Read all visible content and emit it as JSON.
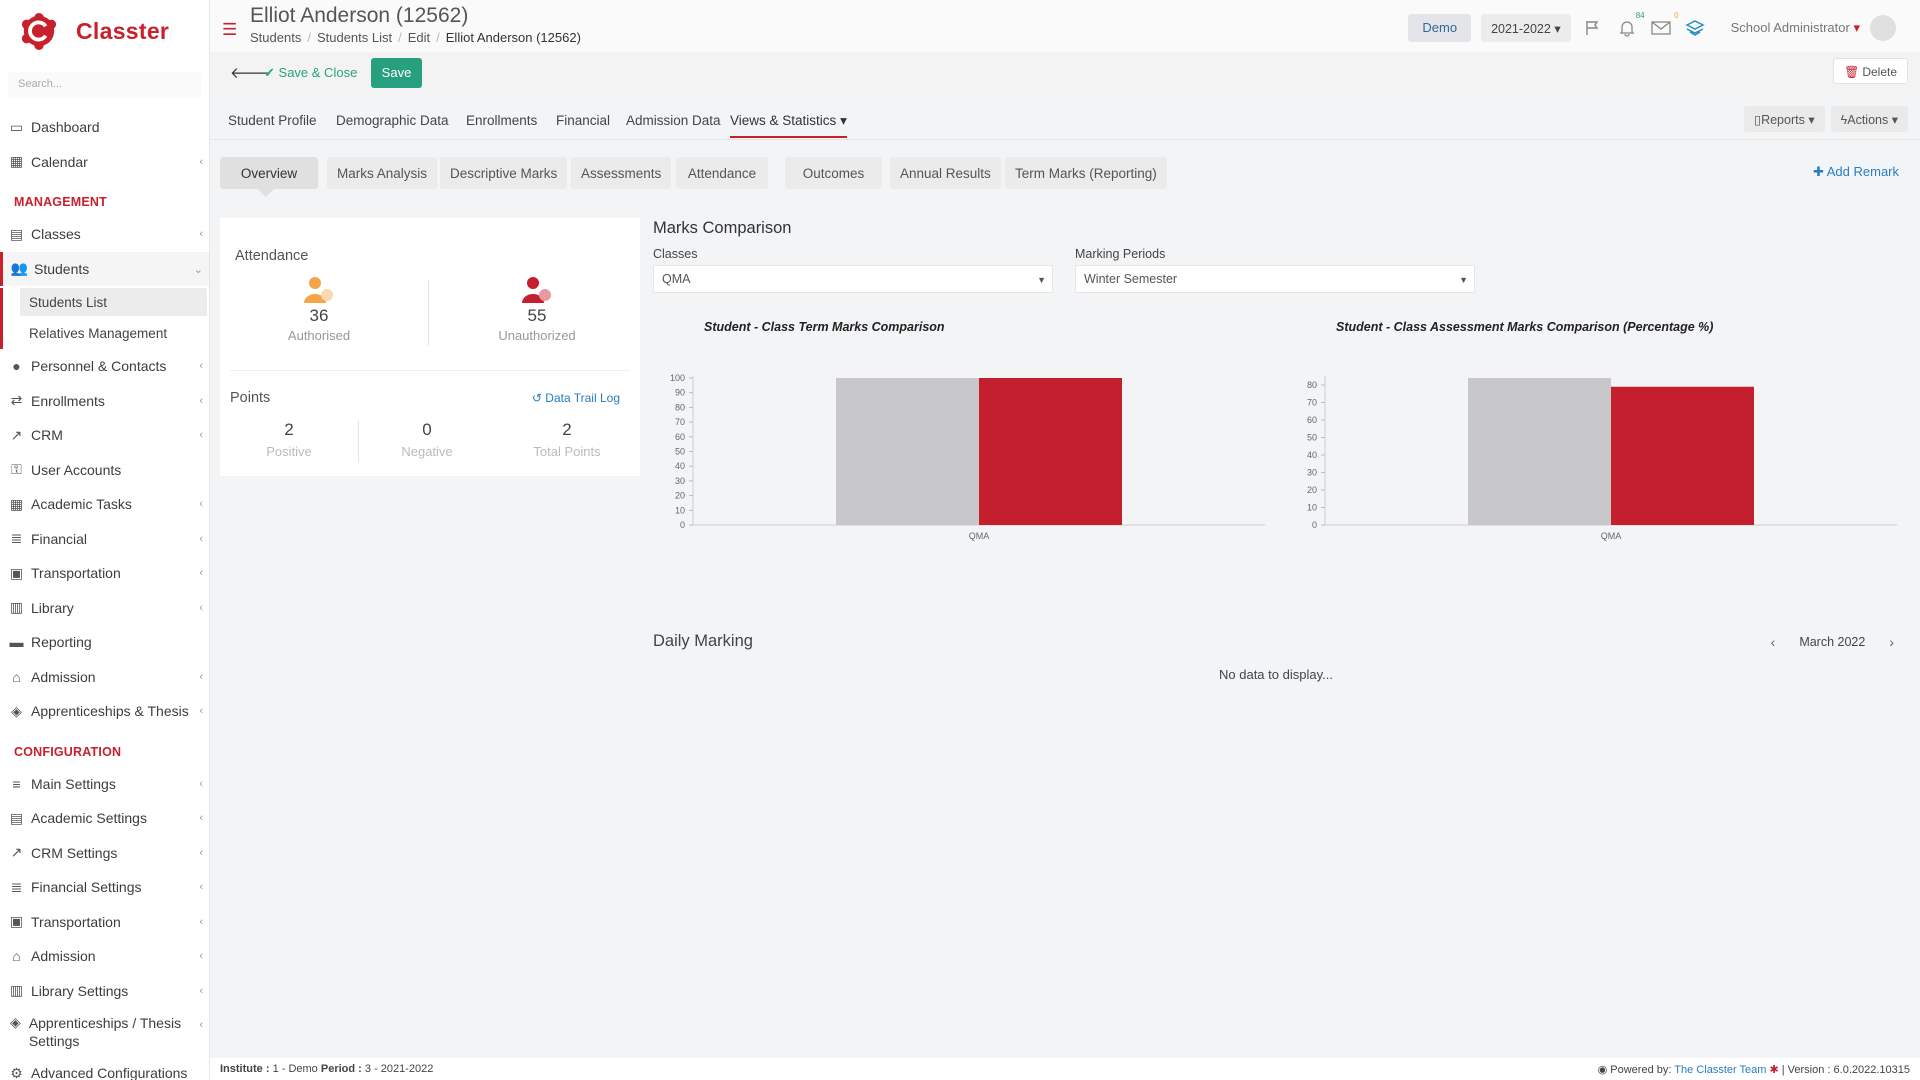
{
  "app": {
    "name": "Classter",
    "search_placeholder": "Search..."
  },
  "sidebar": {
    "items_top": [
      {
        "label": "Dashboard",
        "icon": "monitor-icon",
        "chevron": false
      },
      {
        "label": "Calendar",
        "icon": "calendar-icon",
        "chevron": true
      }
    ],
    "management_title": "MANAGEMENT",
    "management": [
      {
        "label": "Classes",
        "icon": "classes-icon",
        "chevron": true
      },
      {
        "label": "Students",
        "icon": "students-icon",
        "chevron": true,
        "active": true
      }
    ],
    "students_sub": [
      {
        "label": "Students List",
        "active": true
      },
      {
        "label": "Relatives Management"
      }
    ],
    "management_rest": [
      {
        "label": "Personnel & Contacts",
        "icon": "person-icon",
        "chevron": true
      },
      {
        "label": "Enrollments",
        "icon": "transfer-icon",
        "chevron": true
      },
      {
        "label": "CRM",
        "icon": "crm-icon",
        "chevron": true
      },
      {
        "label": "User Accounts",
        "icon": "key-icon",
        "chevron": false
      },
      {
        "label": "Academic Tasks",
        "icon": "grid-icon",
        "chevron": true
      },
      {
        "label": "Financial",
        "icon": "coins-icon",
        "chevron": true
      },
      {
        "label": "Transportation",
        "icon": "bus-icon",
        "chevron": true
      },
      {
        "label": "Library",
        "icon": "books-icon",
        "chevron": true
      },
      {
        "label": "Reporting",
        "icon": "printer-icon",
        "chevron": false
      },
      {
        "label": "Admission",
        "icon": "institution-icon",
        "chevron": true
      },
      {
        "label": "Apprenticeships & Thesis",
        "icon": "box-icon",
        "chevron": true
      }
    ],
    "configuration_title": "CONFIGURATION",
    "configuration": [
      {
        "label": "Main Settings",
        "icon": "sliders-icon",
        "chevron": true
      },
      {
        "label": "Academic Settings",
        "icon": "classes-icon",
        "chevron": true
      },
      {
        "label": "CRM Settings",
        "icon": "crm-icon",
        "chevron": true
      },
      {
        "label": "Financial Settings",
        "icon": "coins-icon",
        "chevron": true
      },
      {
        "label": "Transportation",
        "icon": "bus-icon",
        "chevron": true
      },
      {
        "label": "Admission",
        "icon": "institution-icon",
        "chevron": true
      },
      {
        "label": "Library Settings",
        "icon": "books-icon",
        "chevron": true
      },
      {
        "label": "Apprenticeships / Thesis Settings",
        "icon": "box-icon",
        "chevron": true
      },
      {
        "label": "Advanced Configurations",
        "icon": "gears-icon",
        "chevron": false
      }
    ]
  },
  "header": {
    "title": "Elliot Anderson (12562)",
    "breadcrumb": [
      "Students",
      "Students List",
      "Edit",
      "Elliot Anderson (12562)"
    ],
    "demo": "Demo",
    "year": "2021-2022",
    "notifications_count": "84",
    "messages_count": "0",
    "user": "School Administrator"
  },
  "toolbar": {
    "save_close": "Save & Close",
    "save": "Save",
    "delete": "Delete"
  },
  "tabs": [
    "Student Profile",
    "Demographic Data",
    "Enrollments",
    "Financial",
    "Admission Data",
    "Views & Statistics"
  ],
  "tabs_right": {
    "reports": "Reports",
    "actions": "Actions"
  },
  "subtabs": [
    "Overview",
    "Marks Analysis",
    "Descriptive Marks",
    "Assessments",
    "Attendance",
    "Outcomes",
    "Annual Results",
    "Term Marks (Reporting)"
  ],
  "add_remark": "Add Remark",
  "attendance": {
    "title": "Attendance",
    "authorised": {
      "value": "36",
      "label": "Authorised"
    },
    "unauthorized": {
      "value": "55",
      "label": "Unauthorized"
    }
  },
  "points": {
    "title": "Points",
    "trail": "Data Trail Log",
    "positive": {
      "value": "2",
      "label": "Positive"
    },
    "negative": {
      "value": "0",
      "label": "Negative"
    },
    "total": {
      "value": "2",
      "label": "Total Points"
    }
  },
  "marks": {
    "title": "Marks Comparison",
    "classes_label": "Classes",
    "classes_value": "QMA",
    "periods_label": "Marking Periods",
    "periods_value": "Winter Semester"
  },
  "chart_data": [
    {
      "type": "bar",
      "title": "Student - Class Term Marks Comparison",
      "categories": [
        "QMA"
      ],
      "series": [
        {
          "color": "#c8c8cb",
          "values": [
            100
          ]
        },
        {
          "color": "#c31f2f",
          "values": [
            100
          ]
        }
      ],
      "ylim": [
        0,
        100
      ],
      "yticks": [
        0,
        10,
        20,
        30,
        40,
        50,
        60,
        70,
        80,
        90,
        100
      ]
    },
    {
      "type": "bar",
      "title": "Student - Class Assessment Marks Comparison (Percentage %)",
      "categories": [
        "QMA"
      ],
      "series": [
        {
          "color": "#c8c8cb",
          "values": [
            84
          ]
        },
        {
          "color": "#c31f2f",
          "values": [
            79
          ]
        }
      ],
      "ylim": [
        0,
        84
      ],
      "yticks": [
        0,
        10,
        20,
        30,
        40,
        50,
        60,
        70,
        80
      ]
    }
  ],
  "daily": {
    "title": "Daily Marking",
    "month": "March 2022",
    "no_data": "No data to display..."
  },
  "footer": {
    "institute_label": "Institute :",
    "institute_value": "1 - Demo",
    "period_label": "Period :",
    "period_value": "3 - 2021-2022",
    "powered_label": "Powered by:",
    "powered_link": "The Classter Team",
    "version": "| Version : 6.0.2022.10315"
  },
  "colors": {
    "brand": "#c8202d",
    "accent": "#27a080",
    "link": "#2a7cbf"
  }
}
